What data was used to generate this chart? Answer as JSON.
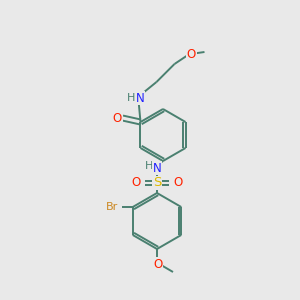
{
  "background_color": "#e9e9e9",
  "fig_size": [
    3.0,
    3.0
  ],
  "dpi": 100,
  "bond_color": "#4a8070",
  "bond_width": 1.4,
  "colors": {
    "C": "#4a8070",
    "N": "#2222ff",
    "O": "#ff2200",
    "S": "#ddbb00",
    "Br": "#cc8822",
    "H": "#4a8070"
  },
  "label_fs": 8.5
}
